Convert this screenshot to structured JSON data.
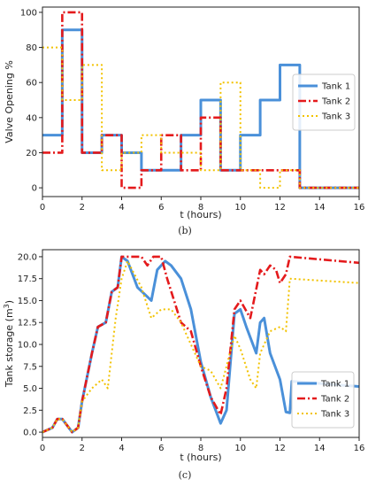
{
  "chart_data": [
    {
      "type": "line",
      "step": true,
      "caption": "(b)",
      "title": "",
      "xlabel": "t (hours)",
      "ylabel": "Valve Opening %",
      "xlim": [
        0,
        16
      ],
      "ylim": [
        -5,
        103
      ],
      "xticks": [
        0,
        2,
        4,
        6,
        8,
        10,
        12,
        14,
        16
      ],
      "yticks": [
        0,
        20,
        40,
        60,
        80,
        100
      ],
      "legend": "right",
      "series": [
        {
          "name": "Tank 1",
          "color": "#4a90d9",
          "style": "solid",
          "width": 3,
          "x": [
            0,
            1,
            2,
            3,
            4,
            5,
            6,
            7,
            8,
            9,
            10,
            11,
            12,
            13,
            16
          ],
          "y": [
            30,
            90,
            20,
            30,
            20,
            10,
            10,
            30,
            50,
            10,
            30,
            50,
            70,
            0,
            0
          ]
        },
        {
          "name": "Tank 2",
          "color": "#e41a1c",
          "style": "dashdot",
          "width": 2.6,
          "x": [
            0,
            1,
            2,
            3,
            4,
            5,
            6,
            7,
            8,
            9,
            10,
            11,
            12,
            13,
            16
          ],
          "y": [
            20,
            100,
            20,
            30,
            0,
            10,
            30,
            10,
            40,
            10,
            10,
            10,
            10,
            0,
            0
          ]
        },
        {
          "name": "Tank 3",
          "color": "#f2c200",
          "style": "dotted",
          "width": 2,
          "x": [
            0,
            1,
            2,
            3,
            4,
            5,
            6,
            7,
            8,
            9,
            10,
            11,
            12,
            13,
            16
          ],
          "y": [
            80,
            50,
            70,
            10,
            20,
            30,
            20,
            20,
            10,
            60,
            10,
            0,
            10,
            0,
            0
          ]
        }
      ]
    },
    {
      "type": "line",
      "caption": "(c)",
      "title": "",
      "xlabel": "t (hours)",
      "ylabel": "Tank storage (m³)",
      "ylabel_main": "Tank storage (m",
      "ylabel_sup": "3",
      "ylabel_close": ")",
      "xlim": [
        0,
        16
      ],
      "ylim": [
        -0.6,
        20.8
      ],
      "xticks": [
        0,
        2,
        4,
        6,
        8,
        10,
        12,
        14,
        16
      ],
      "yticks": [
        0.0,
        2.5,
        5.0,
        7.5,
        10.0,
        12.5,
        15.0,
        17.5,
        20.0
      ],
      "ytick_labels": [
        "0.0",
        "2.5",
        "5.0",
        "7.5",
        "10.0",
        "12.5",
        "15.0",
        "17.5",
        "20.0"
      ],
      "legend": "right",
      "series": [
        {
          "name": "Tank 1",
          "color": "#4a90d9",
          "style": "solid",
          "width": 3,
          "x": [
            0,
            0.5,
            0.75,
            1,
            1.5,
            1.8,
            2,
            2.5,
            2.8,
            3.2,
            3.5,
            3.8,
            4,
            4.3,
            4.8,
            5.5,
            5.8,
            6.2,
            6.5,
            7,
            7.5,
            8,
            8.5,
            9,
            9.3,
            9.7,
            10,
            10.3,
            10.8,
            11,
            11.2,
            11.5,
            12,
            12.3,
            12.5,
            12.6,
            16
          ],
          "y": [
            0,
            0.5,
            1.5,
            1.5,
            0,
            0.5,
            3.5,
            9,
            12,
            12.5,
            16,
            16.5,
            20,
            19.5,
            16.5,
            15,
            18.5,
            19.5,
            19,
            17.5,
            14,
            8,
            4,
            1,
            2.5,
            13.5,
            14,
            12,
            9,
            12.5,
            13,
            9,
            6,
            2.3,
            2.2,
            5.8,
            5.2
          ]
        },
        {
          "name": "Tank 2",
          "color": "#e41a1c",
          "style": "dashdot",
          "width": 2.6,
          "x": [
            0,
            0.5,
            0.75,
            1,
            1.5,
            1.8,
            2,
            2.5,
            2.8,
            3.2,
            3.5,
            3.8,
            4,
            4.3,
            5,
            5.3,
            5.6,
            6,
            6.3,
            7,
            7.5,
            8,
            8.5,
            9,
            9.3,
            9.7,
            10,
            10.5,
            11,
            11.2,
            11.5,
            11.8,
            12,
            12.3,
            12.5,
            16
          ],
          "y": [
            0,
            0.5,
            1.5,
            1.5,
            0,
            0.5,
            3.5,
            9,
            12,
            12.5,
            16,
            16.5,
            20,
            20,
            20,
            19,
            20,
            20,
            17.5,
            12.5,
            11.5,
            7.5,
            4,
            2,
            5,
            14,
            15,
            13,
            18.5,
            18,
            19,
            18.5,
            17,
            18,
            20,
            19.3
          ]
        },
        {
          "name": "Tank 3",
          "color": "#f2c200",
          "style": "dotted",
          "width": 2,
          "x": [
            0,
            0.5,
            0.75,
            1,
            1.5,
            1.8,
            2,
            2.5,
            3,
            3.3,
            3.7,
            4,
            4.3,
            5,
            5.5,
            6,
            6.5,
            7,
            7.5,
            8,
            8.5,
            9,
            9.3,
            9.7,
            10,
            10.5,
            10.8,
            11,
            11.5,
            12,
            12.3,
            12.5,
            16
          ],
          "y": [
            0,
            0.5,
            1.5,
            1.5,
            0,
            0.5,
            3.5,
            5,
            6,
            5,
            13,
            17.5,
            19.5,
            16.5,
            13,
            14,
            14,
            12.5,
            10,
            7.5,
            7,
            5,
            7.5,
            11,
            9.5,
            6,
            5,
            9,
            11.5,
            12,
            11.5,
            17.5,
            17
          ]
        }
      ]
    }
  ]
}
